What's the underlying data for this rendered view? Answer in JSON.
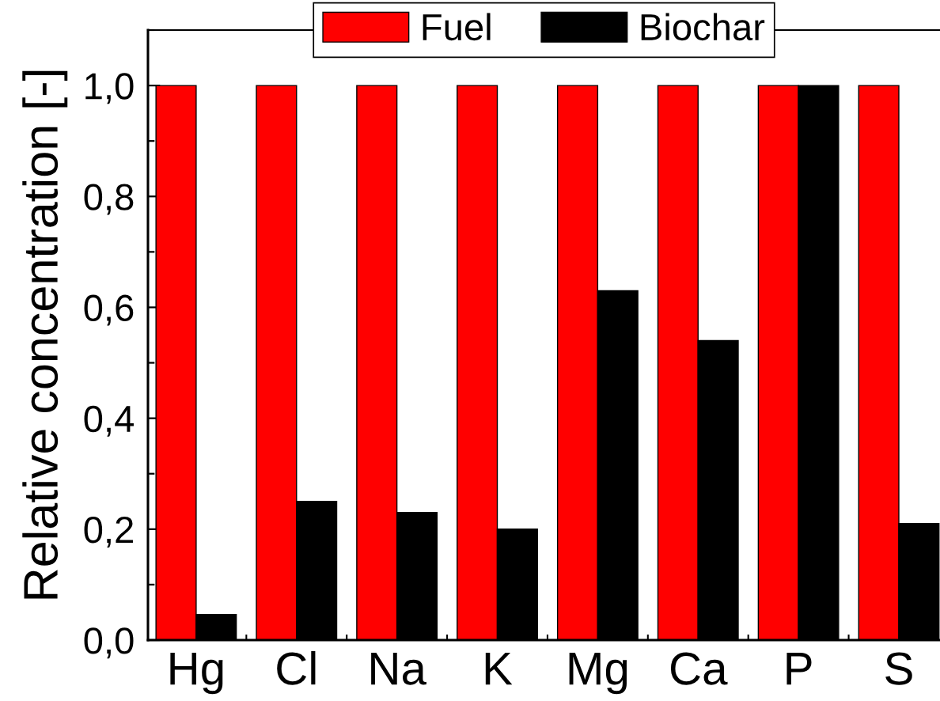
{
  "chart_data": {
    "type": "bar",
    "ylabel": "Relative concentration [-]",
    "categories": [
      "Hg",
      "Cl",
      "Na",
      "K",
      "Mg",
      "Ca",
      "P",
      "S"
    ],
    "series": [
      {
        "name": "Fuel",
        "color": "#ff0000",
        "values": [
          1.0,
          1.0,
          1.0,
          1.0,
          1.0,
          1.0,
          1.0,
          1.0
        ]
      },
      {
        "name": "Biochar",
        "color": "#000000",
        "values": [
          0.046,
          0.25,
          0.23,
          0.2,
          0.63,
          0.54,
          1.0,
          0.21
        ]
      }
    ],
    "ylim": [
      0,
      1.1
    ],
    "yticks": [
      {
        "value": 0,
        "label": "0,0"
      },
      {
        "value": 0.2,
        "label": "0,2"
      },
      {
        "value": 0.4,
        "label": "0,4"
      },
      {
        "value": 0.6,
        "label": "0,6"
      },
      {
        "value": 0.8,
        "label": "0,8"
      },
      {
        "value": 1.0,
        "label": "1,0"
      }
    ],
    "legend": "top",
    "grid": false
  }
}
